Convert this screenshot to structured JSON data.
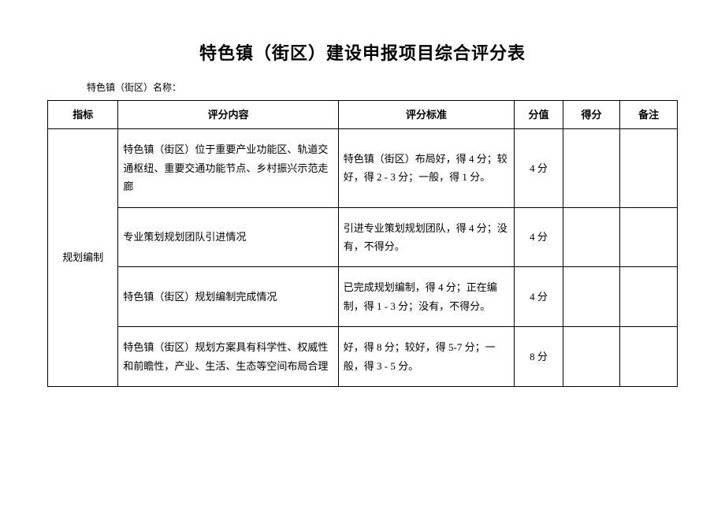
{
  "title": "特色镇（街区）建设申报项目综合评分表",
  "subtitle": "特色镇（街区）名称：",
  "columns": {
    "indicator": "指标",
    "content": "评分内容",
    "standard": "评分标准",
    "score": "分值",
    "grade": "得分",
    "note": "备注"
  },
  "category": "规划编制",
  "rows": [
    {
      "content": "特色镇（街区）位于重要产业功能区、轨道交通枢纽、重要交通功能节点、乡村振兴示范走廊",
      "standard": "特色镇（街区）布局好，得 4 分；较好，得 2 - 3 分；一般，得 1 分。",
      "score": "4 分",
      "grade": "",
      "note": ""
    },
    {
      "content": "专业策划规划团队引进情况",
      "standard": "引进专业策划规划团队，得 4 分；没有，不得分。",
      "score": "4 分",
      "grade": "",
      "note": ""
    },
    {
      "content": "特色镇（街区）规划编制完成情况",
      "standard": "已完成规划编制，得 4 分；正在编制，得 1 - 3 分；没有，不得分。",
      "score": "4 分",
      "grade": "",
      "note": ""
    },
    {
      "content": "特色镇（街区）规划方案具有科学性、权威性和前瞻性，产业、生活、生态等空间布局合理",
      "standard": "好，得 8 分；较好，得 5-7 分；一般，得 3 - 5 分。",
      "score": "8 分",
      "grade": "",
      "note": ""
    }
  ],
  "style": {
    "background_color": "#ffffff",
    "border_color": "#000000",
    "text_color": "#000000",
    "title_fontsize": 22,
    "body_fontsize": 13,
    "subtitle_fontsize": 12
  }
}
